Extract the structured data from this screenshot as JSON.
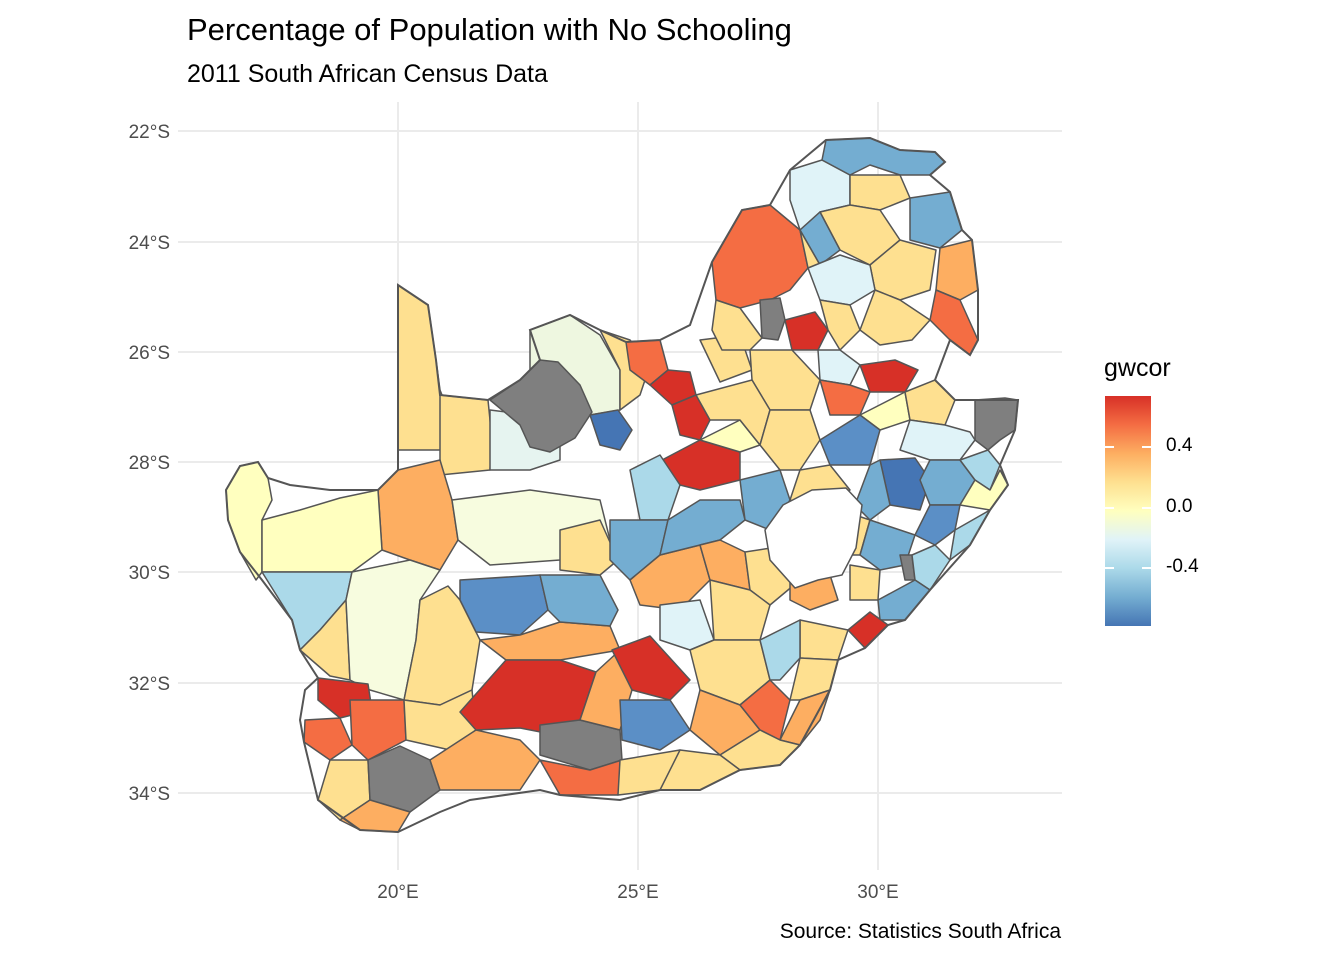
{
  "title": "Percentage of Population with No Schooling",
  "subtitle": "2011 South African Census Data",
  "caption": "Source: Statistics South Africa",
  "axes": {
    "x_ticks": [
      "20°E",
      "25°E",
      "30°E"
    ],
    "y_ticks": [
      "22°S",
      "24°S",
      "26°S",
      "28°S",
      "30°S",
      "32°S",
      "34°S"
    ]
  },
  "legend": {
    "title": "gwcor",
    "labels": [
      "0.4",
      "0.0",
      "-0.4"
    ],
    "colors": [
      "#d73027",
      "#f46d43",
      "#fdae61",
      "#fee090",
      "#ffffbf",
      "#e0f3f8",
      "#abd9e9",
      "#74add1",
      "#4575b4"
    ],
    "na_color": "#7f7f7f"
  },
  "chart_data": {
    "type": "choropleth",
    "region": "South Africa municipalities",
    "fill_variable": "gwcor",
    "fill_range": [
      -0.75,
      0.75
    ],
    "x_range_lon": [
      16.5,
      33
    ],
    "y_range_lat": [
      -35,
      -22
    ]
  }
}
